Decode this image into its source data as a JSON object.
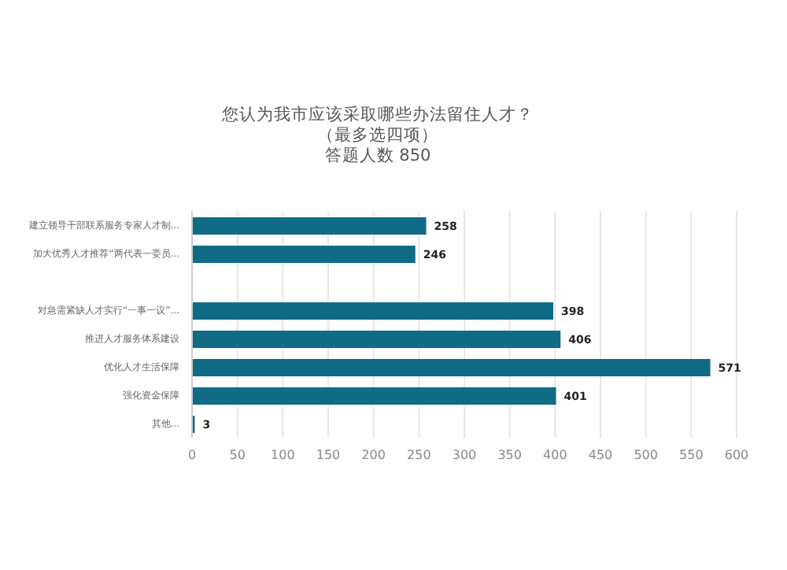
{
  "chart_data": {
    "type": "bar",
    "orientation": "horizontal",
    "title": "您认为我市应该采取哪些办法留住人才？（最多选四项）",
    "subtitle": "答题人数 850",
    "categories": [
      "建立领导干部联系服务专家人才制...",
      "加大优秀人才推荐“两代表一委员...",
      null,
      "对急需紧缺人才实行“一事一议”...",
      "推进人才服务体系建设",
      "优化人才生活保障",
      "强化资金保障",
      "其他..."
    ],
    "values": [
      258,
      246,
      null,
      398,
      406,
      571,
      401,
      3
    ],
    "color": "#106b84",
    "data_labels": true,
    "xlim": [
      0,
      600
    ],
    "xticks": [
      0,
      50,
      100,
      150,
      200,
      250,
      300,
      350,
      400,
      450,
      500,
      550,
      600
    ],
    "grid": "x"
  }
}
